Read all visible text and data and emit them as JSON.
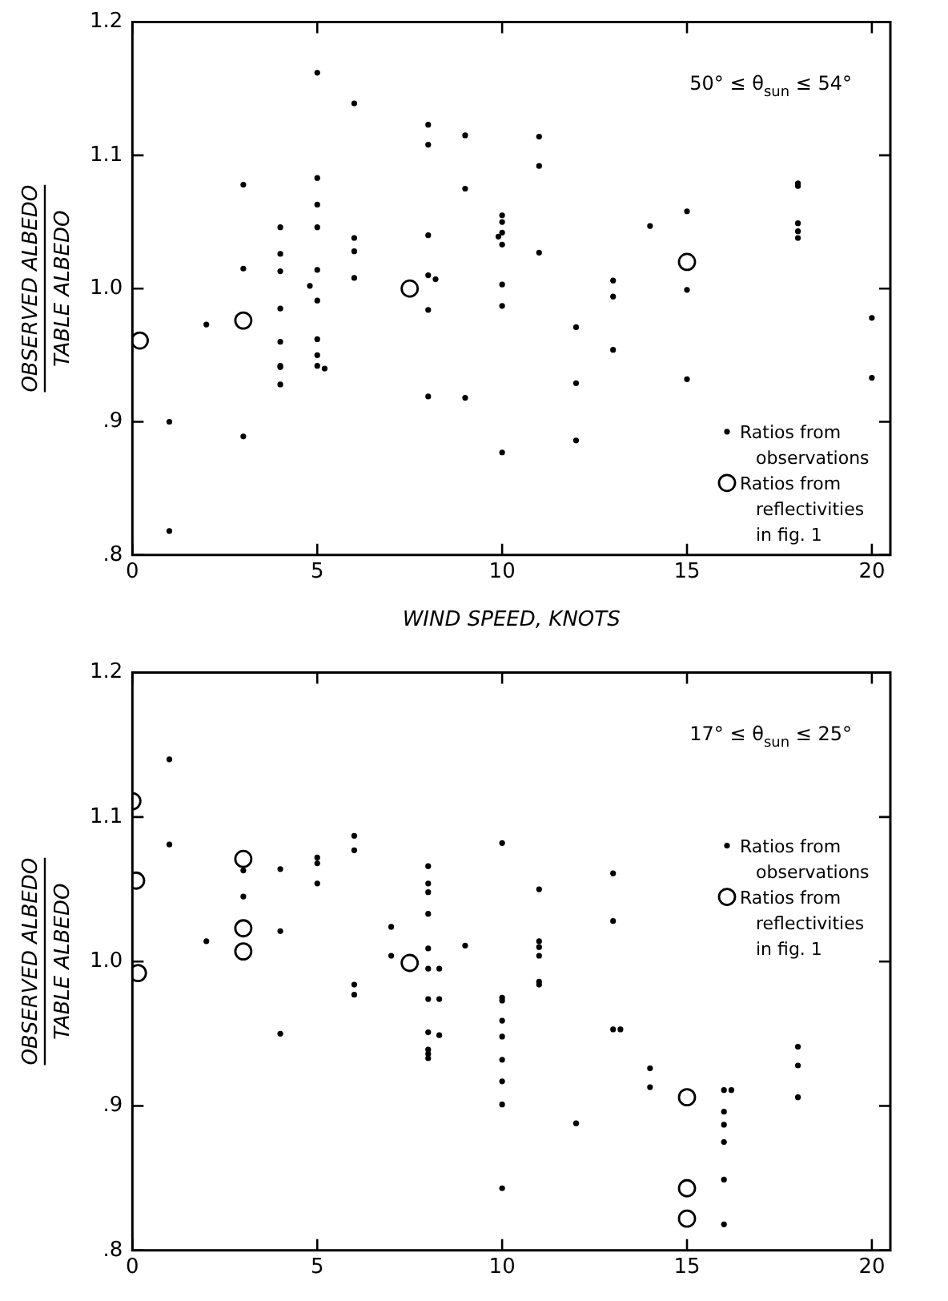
{
  "chart_data": [
    {
      "type": "scatter",
      "xlabel": "WIND SPEED, KNOTS",
      "ylabel": "OBSERVED ALBEDO\nTABLE ALBEDO",
      "annotations": [
        "50° ≤ θ$_{sun}$ ≤ 54°"
      ],
      "legend": "bottom right",
      "grid": false,
      "xlim": [
        0,
        20.5
      ],
      "xticks": [
        0,
        5,
        10,
        15,
        20
      ],
      "ylim": [
        0.8,
        1.2
      ],
      "yticks": [
        {
          "value": 0.8,
          "label": ".8"
        },
        {
          "value": 0.9,
          "label": ".9"
        },
        {
          "value": 1.0,
          "label": "1.0"
        },
        {
          "value": 1.1,
          "label": "1.1"
        },
        {
          "value": 1.2,
          "label": "1.2"
        }
      ],
      "series": [
        {
          "name": "Ratios from observations",
          "color": "#000000",
          "marker": "dot",
          "x": [
            1,
            1,
            2,
            3,
            3,
            3,
            4,
            4,
            4,
            4,
            4,
            4,
            4,
            4,
            4.8,
            5,
            5,
            5,
            5,
            5,
            5,
            5,
            5,
            5,
            5.2,
            6,
            6,
            6,
            6,
            8,
            8,
            8,
            8,
            8,
            8,
            8.2,
            9,
            9,
            9,
            10,
            10,
            10,
            9.9,
            10,
            10,
            10,
            10,
            11,
            11,
            11,
            12,
            12,
            12,
            13,
            13,
            13,
            14,
            15,
            15,
            15,
            18,
            18,
            18,
            18,
            18,
            20,
            20
          ],
          "values": [
            0.9,
            0.818,
            0.973,
            1.078,
            1.015,
            0.889,
            1.046,
            1.026,
            1.013,
            0.985,
            0.96,
            0.942,
            0.941,
            0.928,
            1.002,
            1.162,
            1.083,
            1.063,
            1.046,
            1.014,
            0.991,
            0.962,
            0.95,
            0.942,
            0.94,
            1.139,
            1.038,
            1.028,
            1.008,
            1.123,
            1.108,
            1.04,
            1.01,
            0.984,
            0.919,
            1.007,
            1.115,
            1.075,
            0.918,
            1.055,
            1.05,
            1.042,
            1.039,
            1.033,
            1.003,
            0.987,
            0.877,
            1.114,
            1.092,
            1.027,
            0.971,
            0.929,
            0.886,
            1.006,
            0.994,
            0.954,
            1.047,
            1.058,
            0.999,
            0.932,
            1.079,
            1.077,
            1.049,
            1.043,
            1.038,
            0.978,
            0.933
          ]
        },
        {
          "name": "Ratios from reflectivities in fig. 1",
          "color": "#000000",
          "marker": "circle",
          "x": [
            0.2,
            3,
            7.5,
            15
          ],
          "values": [
            0.961,
            0.976,
            1.0,
            1.02
          ]
        }
      ]
    },
    {
      "type": "scatter",
      "ylabel": "OBSERVED ALBEDO\nTABLE ALBEDO",
      "annotations": [
        "17° ≤ θ$_{sun}$ ≤ 25°"
      ],
      "legend": "right",
      "grid": false,
      "xlim": [
        0,
        20.5
      ],
      "xticks": [
        0,
        5,
        10,
        15,
        20
      ],
      "ylim": [
        0.8,
        1.2
      ],
      "yticks": [
        {
          "value": 0.8,
          "label": ".8"
        },
        {
          "value": 0.9,
          "label": ".9"
        },
        {
          "value": 1.0,
          "label": "1.0"
        },
        {
          "value": 1.1,
          "label": "1.1"
        },
        {
          "value": 1.2,
          "label": "1.2"
        }
      ],
      "series": [
        {
          "name": "Ratios from observations",
          "color": "#000000",
          "marker": "dot",
          "x": [
            1,
            1,
            2,
            3,
            3,
            4,
            4,
            4,
            5,
            5,
            5,
            6,
            6,
            6,
            6,
            7,
            7,
            8,
            8,
            8,
            8,
            8,
            8,
            8,
            8,
            8,
            8,
            8,
            8.3,
            8.3,
            8.3,
            9,
            10,
            10,
            10,
            10,
            10,
            10,
            10,
            10,
            10,
            11,
            11,
            11,
            11,
            11,
            11,
            12,
            13,
            13,
            13,
            13.2,
            14,
            14,
            16,
            16.2,
            16,
            16,
            16,
            16,
            16,
            18,
            18,
            18
          ],
          "values": [
            1.14,
            1.081,
            1.014,
            1.063,
            1.045,
            1.064,
            1.021,
            0.95,
            1.072,
            1.068,
            1.054,
            1.087,
            1.077,
            0.984,
            0.977,
            1.024,
            1.004,
            1.066,
            1.054,
            1.048,
            1.033,
            1.009,
            0.995,
            0.974,
            0.951,
            0.939,
            0.936,
            0.933,
            0.995,
            0.974,
            0.949,
            1.011,
            1.082,
            0.975,
            0.973,
            0.959,
            0.948,
            0.932,
            0.917,
            0.901,
            0.843,
            1.05,
            1.014,
            1.01,
            1.004,
            0.986,
            0.984,
            0.888,
            1.061,
            1.028,
            0.953,
            0.953,
            0.926,
            0.913,
            0.911,
            0.911,
            0.896,
            0.887,
            0.875,
            0.849,
            0.818,
            0.941,
            0.928,
            0.906
          ]
        },
        {
          "name": "Ratios from reflectivities in fig. 1",
          "color": "#000000",
          "marker": "circle",
          "x": [
            0,
            0.1,
            0.15,
            3,
            3,
            3,
            7.5,
            15,
            15,
            15
          ],
          "values": [
            1.111,
            1.056,
            0.992,
            1.071,
            1.023,
            1.007,
            0.999,
            0.906,
            0.843,
            0.822
          ]
        }
      ]
    }
  ]
}
